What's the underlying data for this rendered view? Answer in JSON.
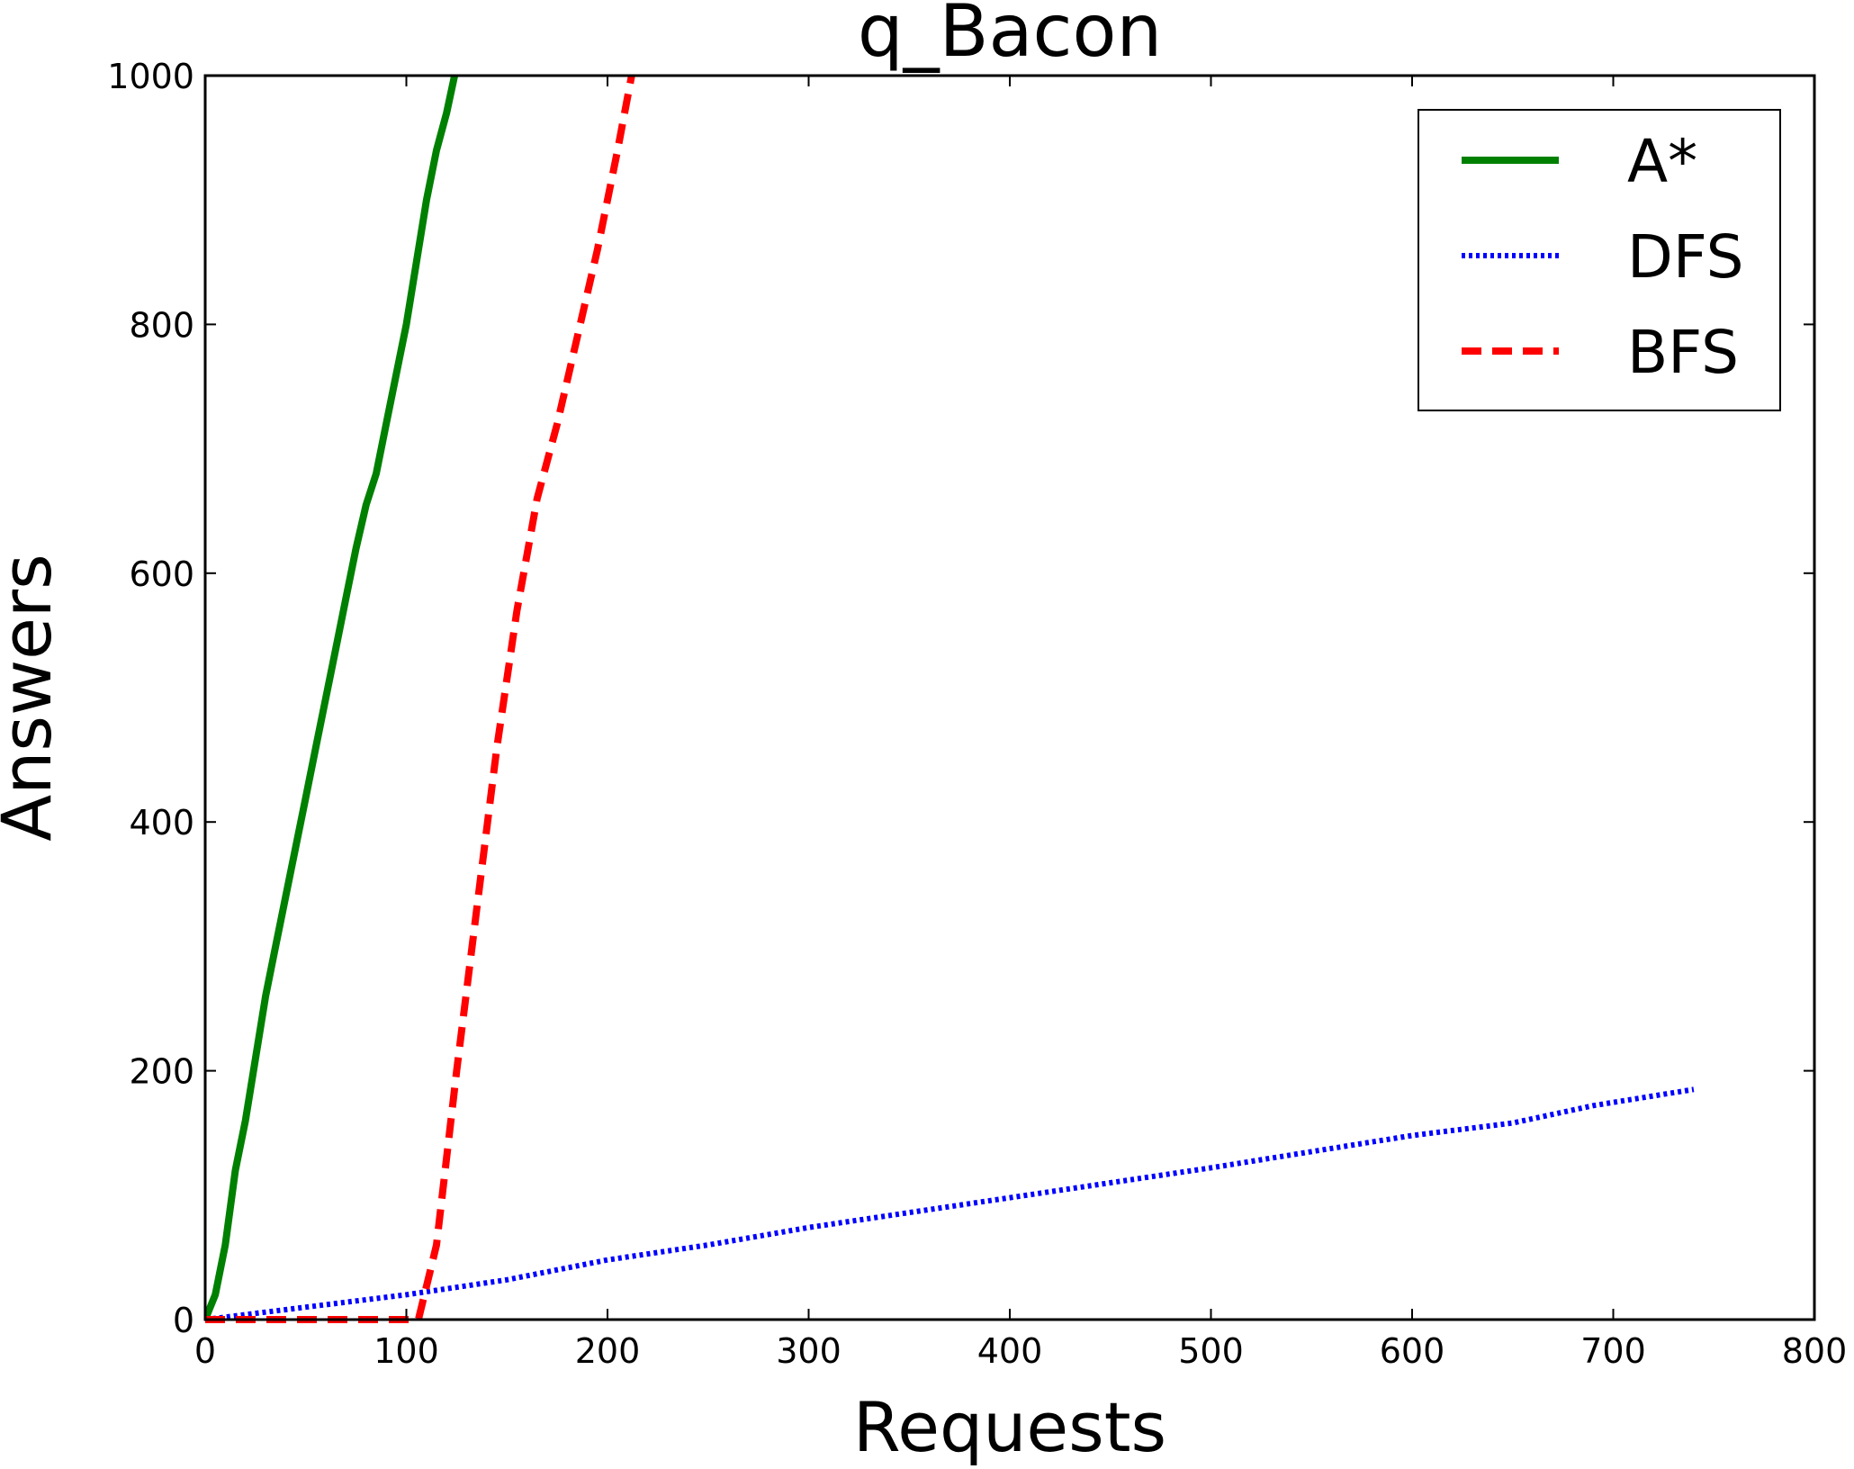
{
  "chart_data": {
    "type": "line",
    "title": "q_Bacon",
    "xlabel": "Requests",
    "ylabel": "Answers",
    "xlim": [
      0,
      800
    ],
    "ylim": [
      0,
      1000
    ],
    "xticks": [
      0,
      100,
      200,
      300,
      400,
      500,
      600,
      700,
      800
    ],
    "yticks": [
      0,
      200,
      400,
      600,
      800,
      1000
    ],
    "grid": false,
    "legend_position": "top-right",
    "series": [
      {
        "name": "A*",
        "color": "#008000",
        "style": "solid",
        "x": [
          0,
          5,
          10,
          15,
          20,
          25,
          30,
          35,
          40,
          45,
          50,
          55,
          60,
          65,
          70,
          75,
          80,
          85,
          90,
          95,
          100,
          105,
          110,
          115,
          120,
          124
        ],
        "y": [
          0,
          20,
          60,
          120,
          160,
          210,
          260,
          300,
          340,
          380,
          420,
          460,
          500,
          540,
          580,
          620,
          655,
          680,
          720,
          760,
          800,
          850,
          900,
          940,
          970,
          1000
        ]
      },
      {
        "name": "DFS",
        "color": "#0000ff",
        "style": "dotted",
        "x": [
          0,
          50,
          100,
          150,
          200,
          250,
          300,
          350,
          400,
          450,
          500,
          550,
          600,
          650,
          690,
          740
        ],
        "y": [
          0,
          10,
          20,
          32,
          48,
          60,
          74,
          86,
          98,
          110,
          122,
          135,
          148,
          158,
          172,
          185
        ]
      },
      {
        "name": "BFS",
        "color": "#ff0000",
        "style": "dashed",
        "x": [
          0,
          50,
          100,
          106,
          115,
          125,
          135,
          145,
          155,
          165,
          175,
          185,
          195,
          205,
          212
        ],
        "y": [
          0,
          0,
          0,
          0,
          60,
          200,
          330,
          460,
          570,
          660,
          720,
          790,
          860,
          940,
          1000
        ]
      }
    ]
  }
}
